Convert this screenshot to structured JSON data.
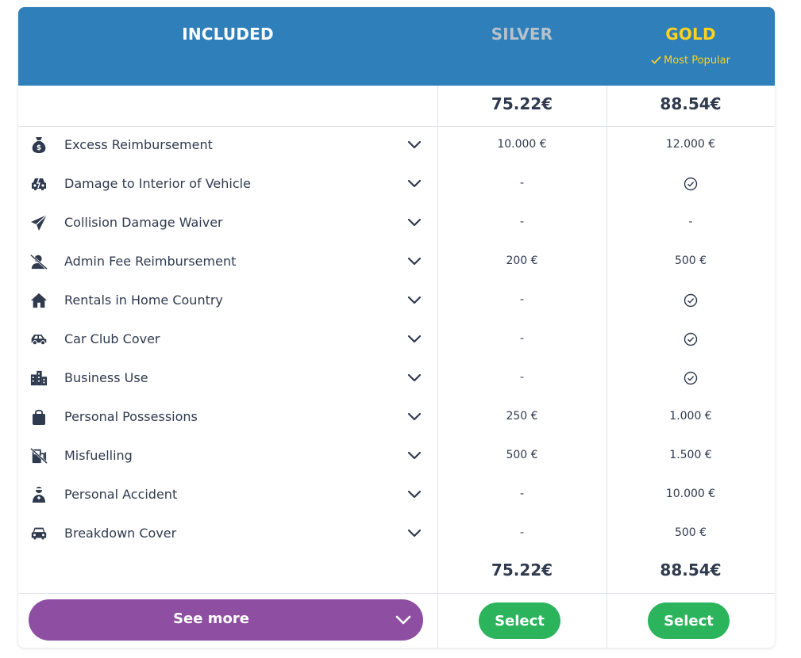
{
  "header": {
    "included": "INCLUDED",
    "silver": "SILVER",
    "gold": "GOLD",
    "most_popular": "Most Popular"
  },
  "prices": {
    "silver": "75.22€",
    "gold": "88.54€"
  },
  "rows": [
    {
      "icon": "money-bag-icon",
      "label": "Excess Reimbursement",
      "silver": "10.000 €",
      "gold": "12.000 €"
    },
    {
      "icon": "car-damage-icon",
      "label": "Damage to Interior of Vehicle",
      "silver": "-",
      "gold": "check"
    },
    {
      "icon": "paper-plane-icon",
      "label": "Collision Damage Waiver",
      "silver": "-",
      "gold": "-"
    },
    {
      "icon": "user-slash-icon",
      "label": "Admin Fee Reimbursement",
      "silver": "200 €",
      "gold": "500 €"
    },
    {
      "icon": "home-icon",
      "label": "Rentals in Home Country",
      "silver": "-",
      "gold": "check"
    },
    {
      "icon": "car-side-icon",
      "label": "Car Club Cover",
      "silver": "-",
      "gold": "check"
    },
    {
      "icon": "city-buildings-icon",
      "label": "Business Use",
      "silver": "-",
      "gold": "check"
    },
    {
      "icon": "shopping-bag-icon",
      "label": "Personal Possessions",
      "silver": "250 €",
      "gold": "1.000 €"
    },
    {
      "icon": "gas-pump-slash-icon",
      "label": "Misfuelling",
      "silver": "500 €",
      "gold": "1.500 €"
    },
    {
      "icon": "injured-person-icon",
      "label": "Personal Accident",
      "silver": "-",
      "gold": "10.000 €"
    },
    {
      "icon": "car-front-icon",
      "label": "Breakdown Cover",
      "silver": "-",
      "gold": "500 €"
    }
  ],
  "footer": {
    "see_more": "See more",
    "select_silver": "Select",
    "select_gold": "Select"
  },
  "colors": {
    "header_bg": "#2e7fba",
    "silver_label": "#b7c1cb",
    "gold_label": "#ffd21f",
    "see_more_bg": "#8e4fa3",
    "select_bg": "#2bb45c",
    "text": "#2f3a4f"
  }
}
